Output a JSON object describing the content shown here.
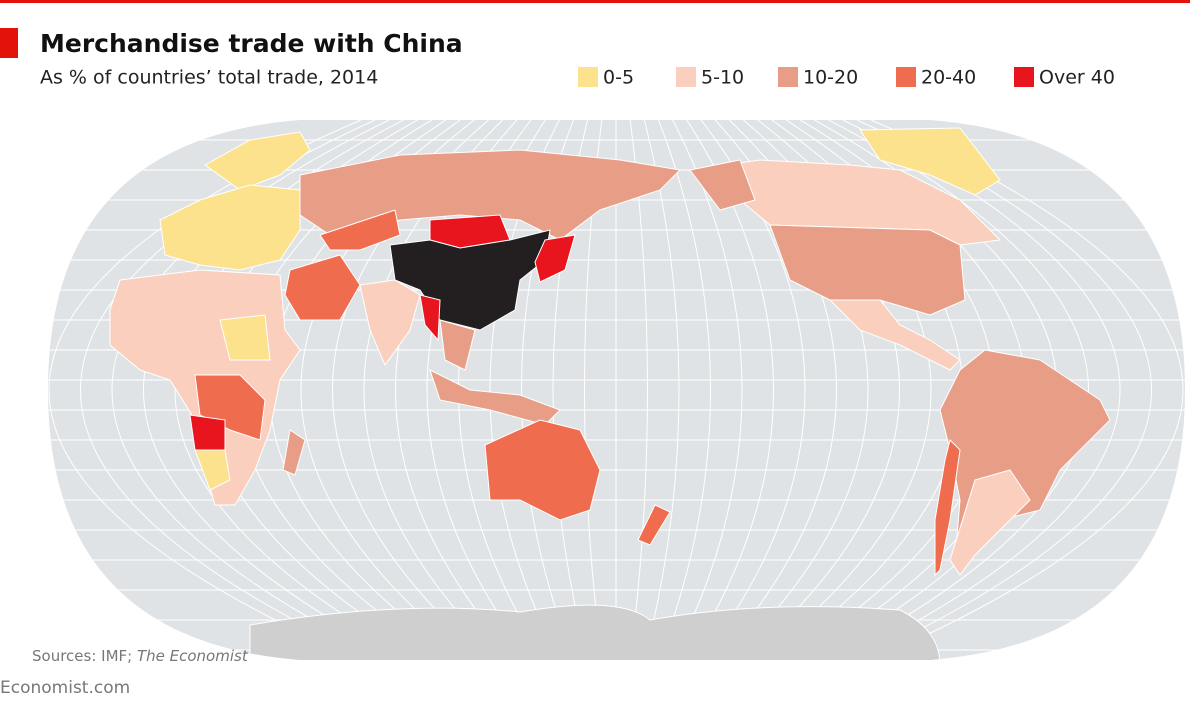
{
  "header": {
    "title": "Merchandise trade with China",
    "subtitle": "As % of countries’ total trade, 2014"
  },
  "legend": [
    {
      "label": "0-5",
      "color": "#fde28e"
    },
    {
      "label": "5-10",
      "color": "#fbcfbd"
    },
    {
      "label": "10-20",
      "color": "#e89e86"
    },
    {
      "label": "20-40",
      "color": "#ef6c4f"
    },
    {
      "label": "Over 40",
      "color": "#e8141e"
    }
  ],
  "china_color": "#231f20",
  "footer": {
    "sources": "Sources: IMF;",
    "sources_italic": "The Economist",
    "site": "Economist.com"
  }
}
